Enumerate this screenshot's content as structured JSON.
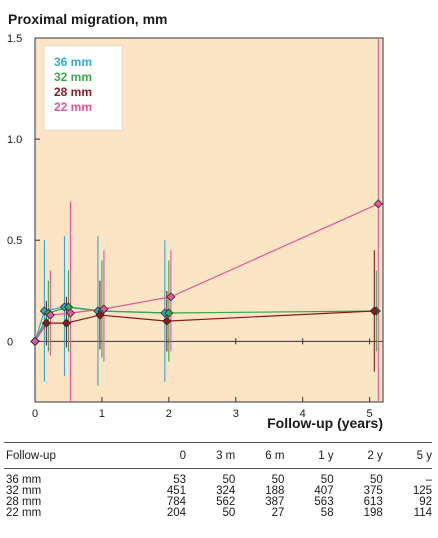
{
  "chart_data": {
    "type": "line",
    "title": "Proximal migration, mm",
    "xlabel": "Follow-up (years)",
    "ylabel": "",
    "xlim": [
      0,
      5.2
    ],
    "ylim": [
      -0.3,
      1.5
    ],
    "x_ticks": [
      0,
      1,
      2,
      3,
      4,
      5
    ],
    "x_tick_labels": [
      "0",
      "1",
      "2",
      "3",
      "4",
      "5"
    ],
    "y_ticks": [
      0,
      0.5,
      1.0,
      1.5
    ],
    "y_tick_labels": [
      "0",
      "0.5",
      "1.0",
      "1.5"
    ],
    "background": "#fbe5c4",
    "legend_position": "top-left",
    "series": [
      {
        "name": "36 mm",
        "color": "#2fa8d8",
        "x": [
          0,
          0.2,
          0.5,
          1,
          2
        ],
        "y": [
          0,
          0.15,
          0.17,
          0.15,
          0.14
        ],
        "err_low": [
          0,
          -0.2,
          -0.17,
          -0.22,
          -0.2
        ],
        "err_high": [
          0,
          0.5,
          0.52,
          0.52,
          0.5
        ]
      },
      {
        "name": "32 mm",
        "color": "#3aa648",
        "x": [
          0,
          0.2,
          0.5,
          1,
          2,
          5.1
        ],
        "y": [
          0,
          0.14,
          0.17,
          0.15,
          0.14,
          0.15
        ],
        "err_low": [
          0,
          -0.05,
          -0.05,
          -0.08,
          -0.1,
          -0.05
        ],
        "err_high": [
          0,
          0.3,
          0.35,
          0.4,
          0.4,
          0.35
        ]
      },
      {
        "name": "28 mm",
        "color": "#8b1a1a",
        "x": [
          0,
          0.2,
          0.5,
          1,
          2,
          5.1
        ],
        "y": [
          0,
          0.09,
          0.09,
          0.13,
          0.1,
          0.15
        ],
        "err_low": [
          0,
          -0.02,
          -0.03,
          -0.04,
          -0.05,
          -0.15
        ],
        "err_high": [
          0,
          0.2,
          0.22,
          0.3,
          0.25,
          0.45
        ]
      },
      {
        "name": "22 mm",
        "color": "#e8559b",
        "x": [
          0,
          0.2,
          0.5,
          1,
          2,
          5.1
        ],
        "y": [
          0,
          0.13,
          0.14,
          0.16,
          0.22,
          0.68
        ],
        "err_low": [
          0,
          -0.07,
          -0.3,
          -0.1,
          -0.05,
          -0.3
        ],
        "err_high": [
          0,
          0.35,
          0.69,
          0.45,
          0.45,
          1.5
        ]
      }
    ]
  },
  "table": {
    "headers": [
      "Follow-up",
      "0",
      "3 m",
      "6 m",
      "1 y",
      "2 y",
      "5 y"
    ],
    "rows": [
      [
        "36 mm",
        "53",
        "50",
        "50",
        "50",
        "50",
        "–"
      ],
      [
        "32 mm",
        "451",
        "324",
        "188",
        "407",
        "375",
        "125"
      ],
      [
        "28 mm",
        "784",
        "562",
        "387",
        "563",
        "613",
        "92"
      ],
      [
        "22 mm",
        "204",
        "50",
        "27",
        "58",
        "198",
        "114"
      ]
    ]
  }
}
